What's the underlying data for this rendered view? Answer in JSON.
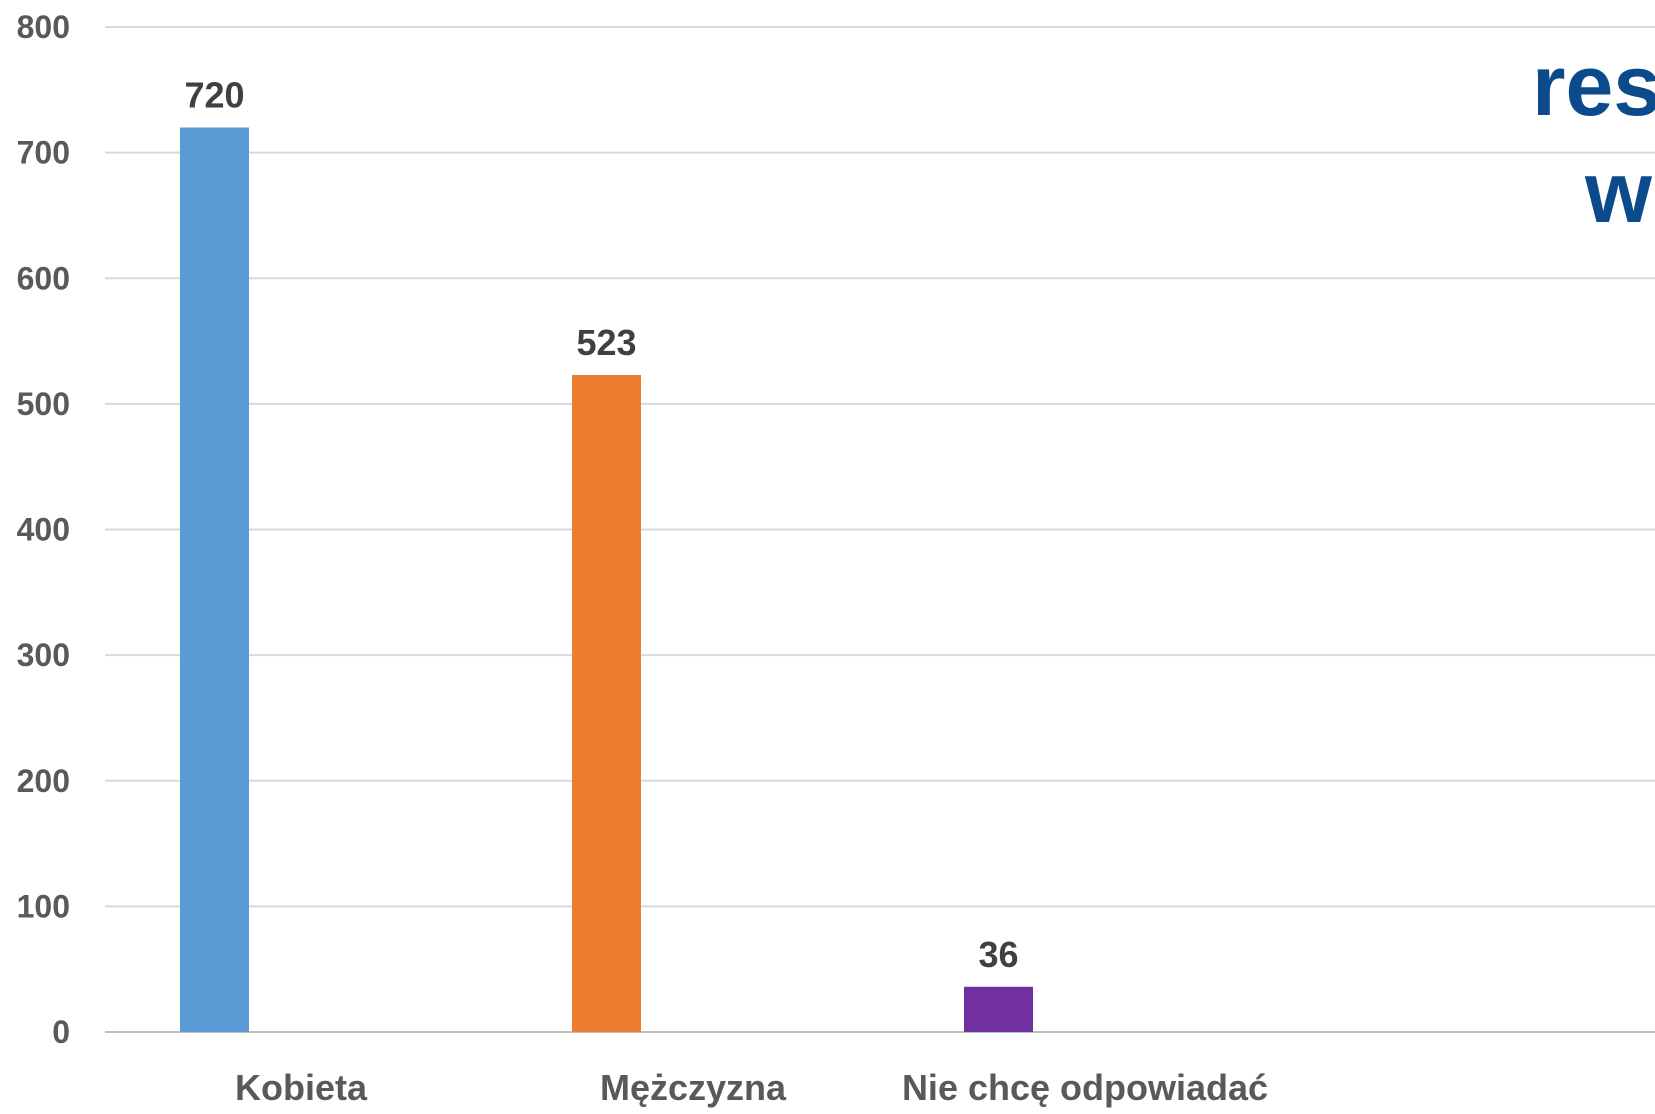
{
  "chart_data": {
    "type": "bar",
    "categories": [
      "Kobieta",
      "Mężczyzna",
      "Nie chcę odpowiadać"
    ],
    "values": [
      720,
      523,
      36
    ],
    "data_labels": [
      "720",
      "523",
      "36"
    ],
    "colors": [
      "#5b9bd5",
      "#ed7d31",
      "#7030a0"
    ],
    "ylim": [
      0,
      800
    ],
    "yticks": [
      0,
      100,
      200,
      300,
      400,
      500,
      600,
      700,
      800
    ],
    "ytick_labels": [
      "0",
      "100",
      "200",
      "300",
      "400",
      "500",
      "600",
      "700",
      "800"
    ],
    "grid": true,
    "title_fragments": [
      "res",
      "w"
    ],
    "title_color": "#0b4a8b"
  }
}
